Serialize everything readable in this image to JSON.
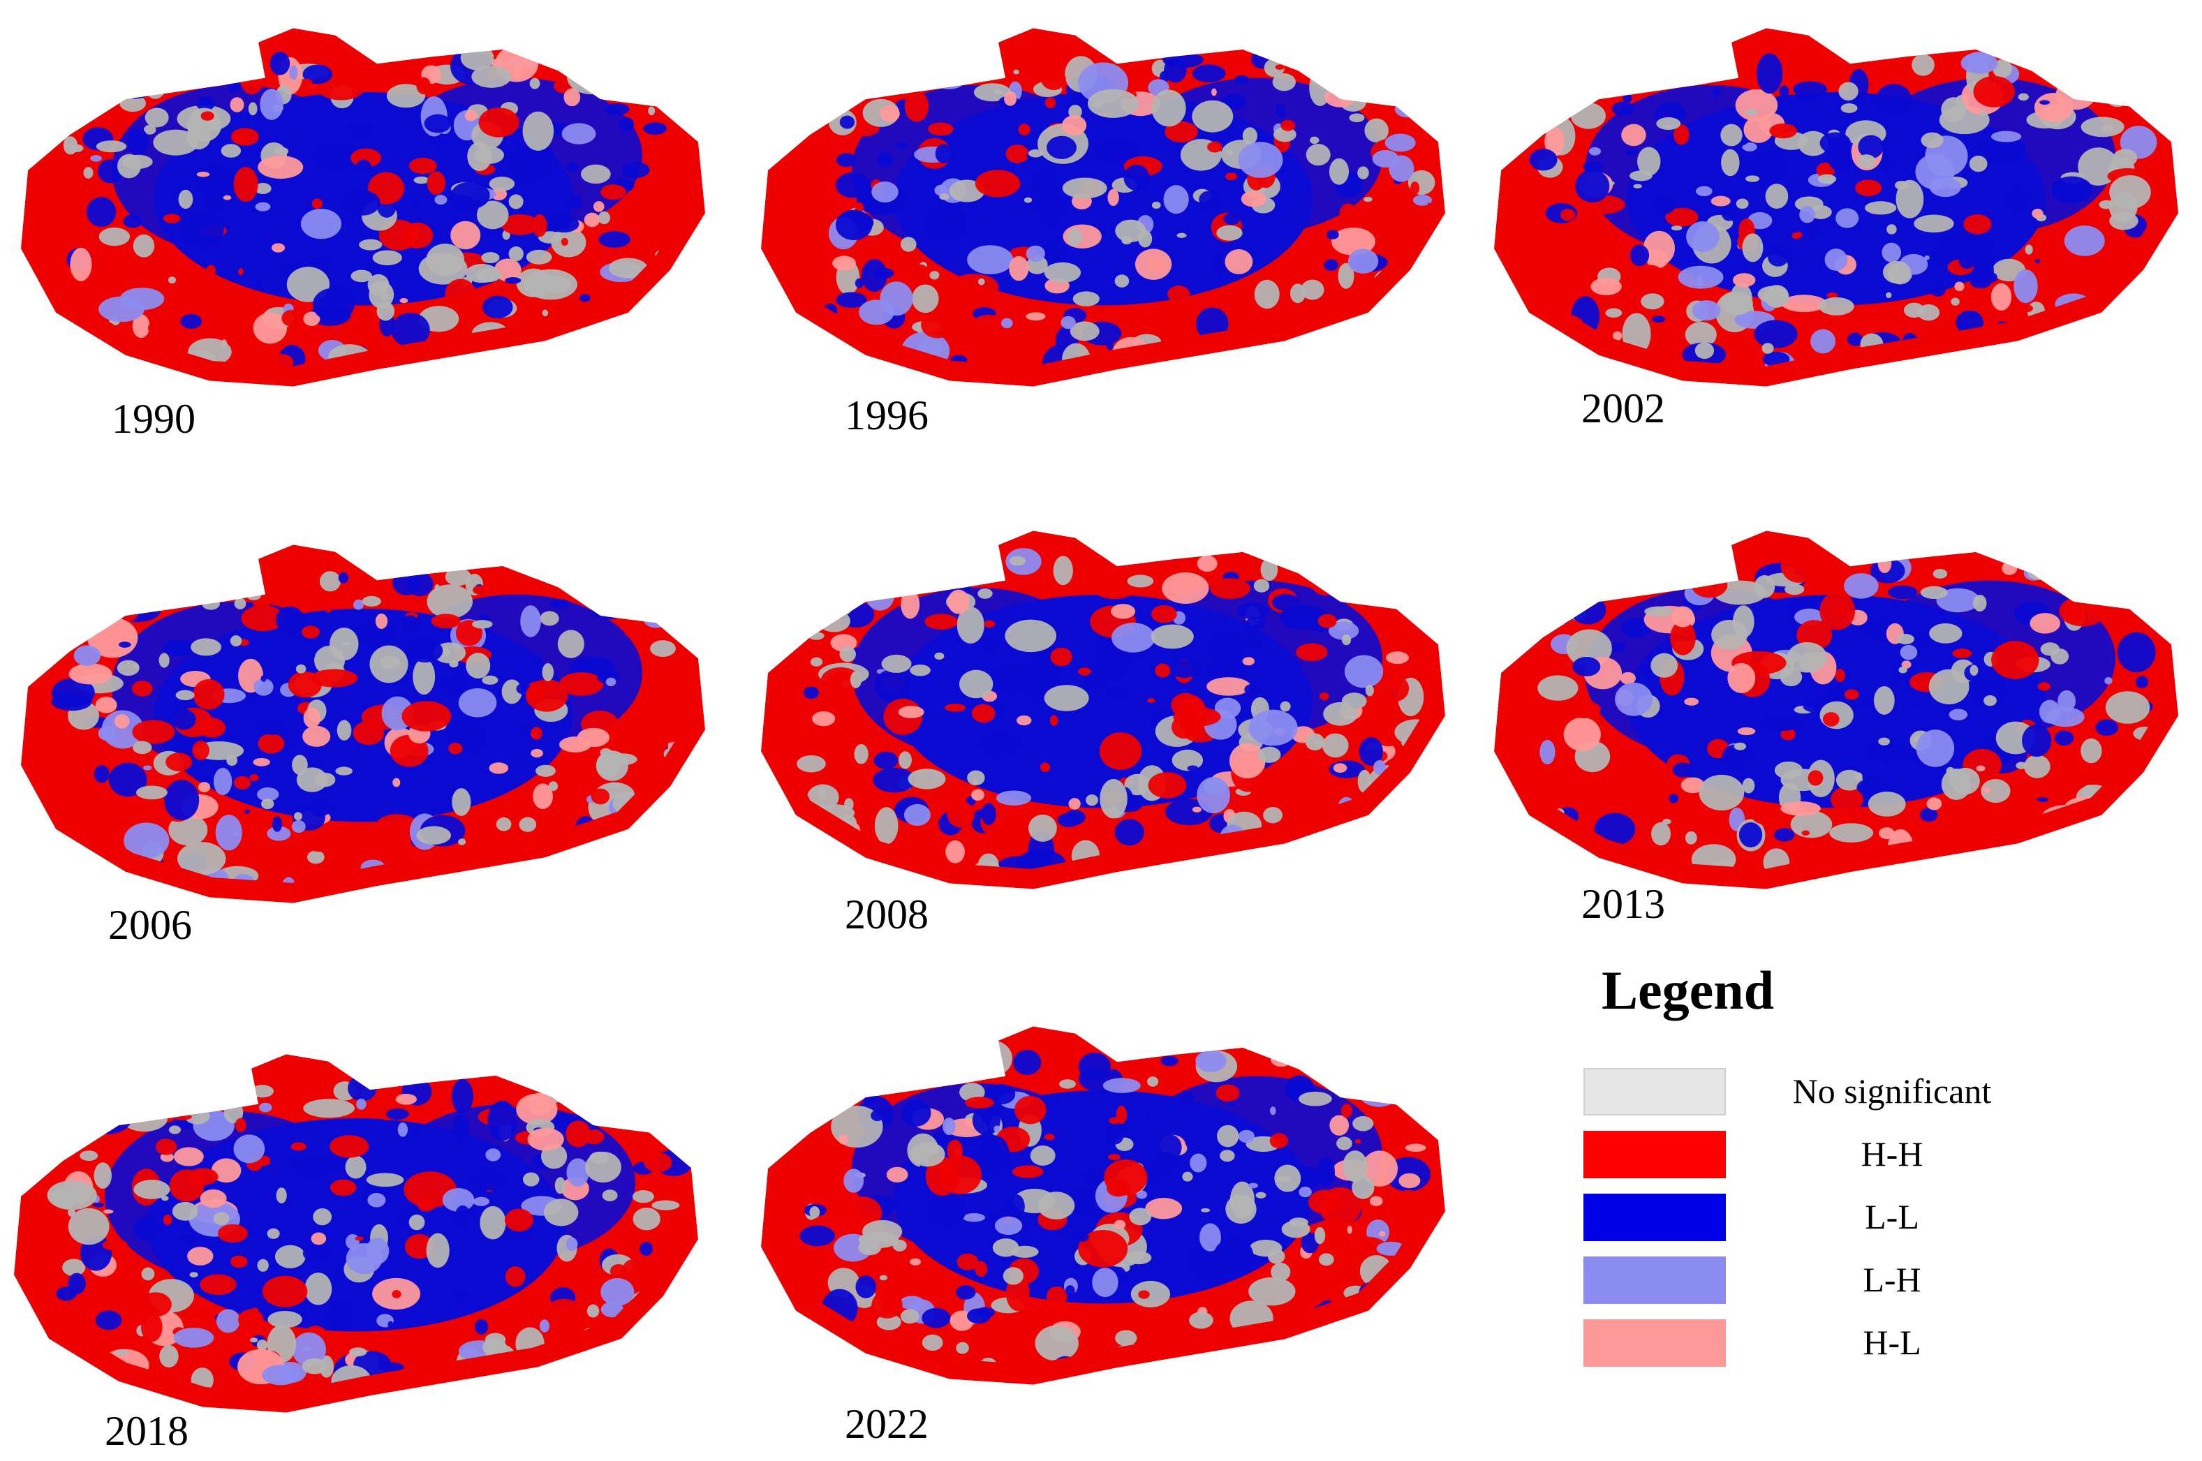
{
  "panels": [
    {
      "year": "1990"
    },
    {
      "year": "1996"
    },
    {
      "year": "2002"
    },
    {
      "year": "2006"
    },
    {
      "year": "2008"
    },
    {
      "year": "2013"
    },
    {
      "year": "2018"
    },
    {
      "year": "2022"
    }
  ],
  "legend": {
    "title": "Legend",
    "items": [
      {
        "label": "No significant",
        "color": "#e6e6e6"
      },
      {
        "label": "H-H",
        "color": "#ff0000"
      },
      {
        "label": "L-L",
        "color": "#0000e6"
      },
      {
        "label": "L-H",
        "color": "#8c8cf0"
      },
      {
        "label": "H-L",
        "color": "#ff9a9a"
      }
    ]
  },
  "map_colors": {
    "hh": "#ee0000",
    "ll": "#0a0ad2",
    "ns": "#b4b4b4",
    "hl": "#ff9a9a",
    "lh": "#8c8cf0"
  }
}
